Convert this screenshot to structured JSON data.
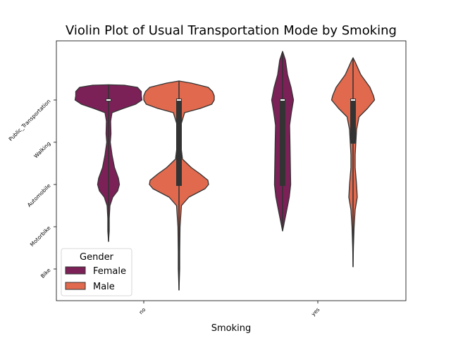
{
  "chart_data": {
    "type": "violin",
    "title": "Violin Plot of Usual Transportation Mode by Smoking",
    "xlabel": "Smoking",
    "ylabel": "",
    "categories": [
      "no",
      "yes"
    ],
    "y_categories": [
      "Public_Transportation",
      "Walking",
      "Automobile",
      "Motorbike",
      "Bike"
    ],
    "hue_order": [
      "Female",
      "Male"
    ],
    "legend": {
      "title": "Gender",
      "location": "lower-left"
    },
    "series": [
      {
        "name": "Female",
        "color": "#7b2157",
        "violins": [
          {
            "x": "no",
            "profile": [
              [
                -0.36,
                0
              ],
              [
                -0.35,
                0.45
              ],
              [
                -0.3,
                0.82
              ],
              [
                -0.2,
                0.93
              ],
              [
                -0.1,
                0.93
              ],
              [
                0,
                0.95
              ],
              [
                0.1,
                0.77
              ],
              [
                0.2,
                0.42
              ],
              [
                0.3,
                0.1
              ],
              [
                0.5,
                0.06
              ],
              [
                0.8,
                0.07
              ],
              [
                1.0,
                0.05
              ],
              [
                1.3,
                0.1
              ],
              [
                1.6,
                0.17
              ],
              [
                1.85,
                0.28
              ],
              [
                2.0,
                0.31
              ],
              [
                2.15,
                0.26
              ],
              [
                2.3,
                0.12
              ],
              [
                2.5,
                0.04
              ],
              [
                2.8,
                0.02
              ],
              [
                3.1,
                0.02
              ],
              [
                3.35,
                0
              ]
            ],
            "q1": 0,
            "median": 0,
            "q3": 0
          },
          {
            "x": "yes",
            "profile": [
              [
                -1.15,
                0
              ],
              [
                -0.95,
                0.08
              ],
              [
                -0.6,
                0.14
              ],
              [
                -0.3,
                0.24
              ],
              [
                0,
                0.31
              ],
              [
                0.3,
                0.25
              ],
              [
                0.6,
                0.2
              ],
              [
                1.0,
                0.21
              ],
              [
                1.5,
                0.22
              ],
              [
                2.0,
                0.23
              ],
              [
                2.3,
                0.19
              ],
              [
                2.6,
                0.12
              ],
              [
                2.85,
                0.06
              ],
              [
                3.1,
                0
              ]
            ],
            "q1": 0,
            "median": 0,
            "q3": 2
          }
        ]
      },
      {
        "name": "Male",
        "color": "#e0694e",
        "violins": [
          {
            "x": "no",
            "profile": [
              [
                -0.45,
                0
              ],
              [
                -0.4,
                0.35
              ],
              [
                -0.3,
                0.83
              ],
              [
                -0.2,
                0.95
              ],
              [
                -0.1,
                1.0
              ],
              [
                0,
                1.0
              ],
              [
                0.1,
                0.93
              ],
              [
                0.2,
                0.6
              ],
              [
                0.3,
                0.16
              ],
              [
                0.6,
                0.05
              ],
              [
                1.0,
                0.04
              ],
              [
                1.4,
                0.1
              ],
              [
                1.6,
                0.35
              ],
              [
                1.75,
                0.6
              ],
              [
                1.9,
                0.82
              ],
              [
                2.0,
                0.84
              ],
              [
                2.1,
                0.74
              ],
              [
                2.3,
                0.28
              ],
              [
                2.5,
                0.07
              ],
              [
                3.0,
                0.03
              ],
              [
                3.6,
                0.02
              ],
              [
                4.0,
                0.02
              ],
              [
                4.5,
                0
              ]
            ],
            "q1": 0,
            "median": 0,
            "q3": 2
          },
          {
            "x": "yes",
            "profile": [
              [
                -1.0,
                0
              ],
              [
                -0.9,
                0.06
              ],
              [
                -0.6,
                0.22
              ],
              [
                -0.3,
                0.48
              ],
              [
                -0.1,
                0.58
              ],
              [
                0,
                0.61
              ],
              [
                0.2,
                0.41
              ],
              [
                0.4,
                0.17
              ],
              [
                0.7,
                0.1
              ],
              [
                1.0,
                0.08
              ],
              [
                1.3,
                0.06
              ],
              [
                1.6,
                0.06
              ],
              [
                2.0,
                0.1
              ],
              [
                2.3,
                0.12
              ],
              [
                2.6,
                0.06
              ],
              [
                3.0,
                0.03
              ],
              [
                3.5,
                0.01
              ],
              [
                3.95,
                0
              ]
            ],
            "q1": 0,
            "median": 0,
            "q3": 1
          }
        ]
      }
    ],
    "grid": false
  }
}
